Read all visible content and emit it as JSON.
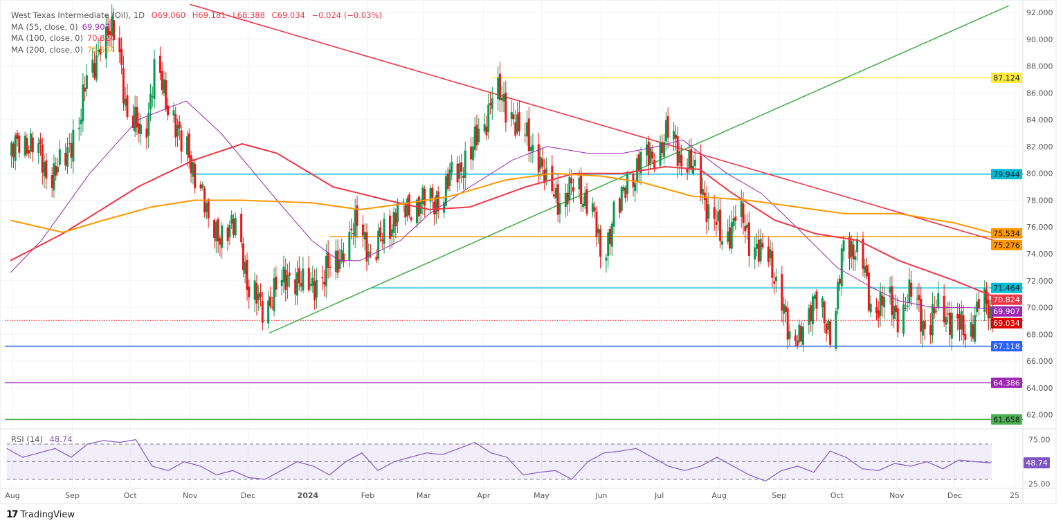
{
  "header": {
    "symbol": "West Texas Intermediate (Oil), 1D",
    "open": "O69.060",
    "high": "H69.181",
    "low": "L68.388",
    "close": "C69.034",
    "change": "−0.024 (−0.03%)",
    "change_color": "#f23645"
  },
  "indicators": [
    {
      "label": "MA (55, close, 0)",
      "value": "69.907",
      "color": "#9c27b0"
    },
    {
      "label": "MA (100, close, 0)",
      "value": "70.824",
      "color": "#f23645"
    },
    {
      "label": "MA (200, close, 0)",
      "value": "75.534",
      "color": "#ff9800"
    }
  ],
  "rsi_legend": {
    "label": "RSI (14)",
    "value": "48.74",
    "color": "#7e57c2"
  },
  "branding": {
    "name": "TradingView"
  },
  "chart_data": {
    "type": "candlestick",
    "title": "West Texas Intermediate (Oil), 1D",
    "y_ticks": [
      "92.000",
      "90.000",
      "88.000",
      "86.000",
      "84.000",
      "82.000",
      "80.000",
      "78.000",
      "76.000",
      "74.000",
      "72.000",
      "70.000",
      "68.000",
      "66.000",
      "64.000",
      "62.000"
    ],
    "ylim": [
      61,
      92.6
    ],
    "x_ticks": [
      {
        "label": "Aug",
        "date": "2023-08-01"
      },
      {
        "label": "Sep",
        "date": "2023-09-01"
      },
      {
        "label": "Oct",
        "date": "2023-10-01"
      },
      {
        "label": "Nov",
        "date": "2023-11-01"
      },
      {
        "label": "Dec",
        "date": "2023-12-01"
      },
      {
        "label": "2024",
        "date": "2024-01-01"
      },
      {
        "label": "Feb",
        "date": "2024-02-01"
      },
      {
        "label": "Mar",
        "date": "2024-03-01"
      },
      {
        "label": "Apr",
        "date": "2024-04-01"
      },
      {
        "label": "May",
        "date": "2024-05-01"
      },
      {
        "label": "Jun",
        "date": "2024-06-01"
      },
      {
        "label": "Jul",
        "date": "2024-07-01"
      },
      {
        "label": "Aug",
        "date": "2024-08-01"
      },
      {
        "label": "Sep",
        "date": "2024-09-01"
      },
      {
        "label": "Oct",
        "date": "2024-10-01"
      },
      {
        "label": "Nov",
        "date": "2024-11-01"
      },
      {
        "label": "Dec",
        "date": "2024-12-01"
      },
      {
        "label": "25",
        "date": "2025-01-01"
      }
    ],
    "weekly_closes_start": "2023-07-31",
    "weekly_closes": [
      81,
      82.5,
      82,
      80,
      80.5,
      83,
      87,
      90,
      90.5,
      84,
      83,
      87.5,
      85,
      82,
      80,
      76,
      75.5,
      76,
      71,
      70,
      71.5,
      72.5,
      71.5,
      72,
      73,
      74.5,
      76.5,
      73.5,
      76,
      77,
      77.5,
      78,
      78,
      80,
      81,
      83,
      86,
      85,
      83,
      82,
      79,
      78,
      79,
      78,
      74,
      77,
      79.5,
      81,
      81.5,
      83,
      81,
      80,
      77,
      75,
      77,
      75,
      74,
      72,
      67,
      69,
      70.5,
      68,
      75,
      74,
      70,
      70.5,
      69.5,
      71,
      68.5,
      70,
      69,
      68,
      70.5,
      69.034
    ],
    "up_color": "#089950",
    "down_color": "#f01414",
    "moving_averages": [
      {
        "name": "MA (55, close, 0)",
        "color": "#9c27b0",
        "points": [
          [
            "2023-07-31",
            72.6
          ],
          [
            "2023-08-16",
            75
          ],
          [
            "2023-09-10",
            80
          ],
          [
            "2023-10-05",
            84
          ],
          [
            "2023-10-30",
            85.4
          ],
          [
            "2023-11-17",
            83
          ],
          [
            "2023-12-16",
            78
          ],
          [
            "2024-01-03",
            75
          ],
          [
            "2024-01-17",
            73.5
          ],
          [
            "2024-01-28",
            73.5
          ],
          [
            "2024-02-18",
            75
          ],
          [
            "2024-03-04",
            77
          ],
          [
            "2024-03-25",
            79
          ],
          [
            "2024-04-16",
            81
          ],
          [
            "2024-05-04",
            82
          ],
          [
            "2024-05-25",
            81.5
          ],
          [
            "2024-06-12",
            81.5
          ],
          [
            "2024-06-30",
            82
          ],
          [
            "2024-07-13",
            82.5
          ],
          [
            "2024-08-05",
            80
          ],
          [
            "2024-08-23",
            78.5
          ],
          [
            "2024-09-10",
            76
          ],
          [
            "2024-10-01",
            73
          ],
          [
            "2024-10-19",
            71.5
          ],
          [
            "2024-11-02",
            70.5
          ],
          [
            "2024-11-20",
            70
          ],
          [
            "2024-12-08",
            70
          ],
          [
            "2024-12-21",
            69.907
          ]
        ]
      },
      {
        "name": "MA (100, close, 0)",
        "color": "#f23645",
        "points": [
          [
            "2023-07-31",
            73.5
          ],
          [
            "2023-08-27",
            75.5
          ],
          [
            "2023-10-05",
            79
          ],
          [
            "2023-11-03",
            81
          ],
          [
            "2023-11-28",
            82.2
          ],
          [
            "2023-12-16",
            81.5
          ],
          [
            "2024-01-14",
            79
          ],
          [
            "2024-02-11",
            78
          ],
          [
            "2024-03-04",
            77.3
          ],
          [
            "2024-03-25",
            77.5
          ],
          [
            "2024-04-23",
            79
          ],
          [
            "2024-05-18",
            80
          ],
          [
            "2024-06-12",
            80
          ],
          [
            "2024-07-04",
            80.5
          ],
          [
            "2024-07-22",
            80.3
          ],
          [
            "2024-08-08",
            78.5
          ],
          [
            "2024-08-30",
            76.5
          ],
          [
            "2024-09-20",
            75.5
          ],
          [
            "2024-10-12",
            75
          ],
          [
            "2024-11-02",
            73.5
          ],
          [
            "2024-12-01",
            72
          ],
          [
            "2024-12-21",
            70.824
          ]
        ]
      },
      {
        "name": "MA (200, close, 0)",
        "color": "#ff9800",
        "points": [
          [
            "2023-07-31",
            76.5
          ],
          [
            "2023-08-27",
            75.6
          ],
          [
            "2023-09-17",
            76.5
          ],
          [
            "2023-10-12",
            77.5
          ],
          [
            "2023-11-03",
            78
          ],
          [
            "2023-11-28",
            78
          ],
          [
            "2024-01-03",
            77.8
          ],
          [
            "2024-01-28",
            77.3
          ],
          [
            "2024-02-18",
            77.7
          ],
          [
            "2024-03-15",
            78.3
          ],
          [
            "2024-04-12",
            79.5
          ],
          [
            "2024-05-07",
            80
          ],
          [
            "2024-06-01",
            79.8
          ],
          [
            "2024-06-23",
            79.3
          ],
          [
            "2024-07-18",
            78.3
          ],
          [
            "2024-08-16",
            78
          ],
          [
            "2024-09-10",
            77.5
          ],
          [
            "2024-10-05",
            77
          ],
          [
            "2024-11-02",
            77
          ],
          [
            "2024-12-01",
            76.3
          ],
          [
            "2024-12-21",
            75.534
          ]
        ]
      }
    ],
    "trend_lines": [
      {
        "color": "#f23645",
        "from": [
          "2023-11-01",
          92.6
        ],
        "to": [
          "2024-12-31",
          74.6
        ]
      },
      {
        "color": "#4caf50",
        "from": [
          "2023-12-12",
          68.1
        ],
        "to": [
          "2024-12-29",
          92.5
        ]
      }
    ],
    "levels": [
      {
        "value": 87.124,
        "label": "87.124",
        "color": "#ffeb3b",
        "text_color": "#131722",
        "from": "2024-04-05",
        "style": "solid"
      },
      {
        "value": 79.944,
        "label": "79.944",
        "color": "#00bcd4",
        "text_color": "#131722",
        "from": "2023-11-03",
        "style": "solid"
      },
      {
        "value": 75.534,
        "label": "75.534",
        "color": "#ff9800",
        "text_color": "#131722",
        "from": null,
        "style": "tag-only"
      },
      {
        "value": 75.276,
        "label": "75.276",
        "color": "#ff9800",
        "text_color": "#131722",
        "from": "2024-01-12",
        "style": "solid"
      },
      {
        "value": 71.464,
        "label": "71.464",
        "color": "#00bcd4",
        "text_color": "#131722",
        "from": "2024-02-03",
        "style": "solid"
      },
      {
        "value": 70.824,
        "label": "70.824",
        "color": "#f23645",
        "text_color": "#ffffff",
        "from": null,
        "style": "tag-only"
      },
      {
        "value": 69.907,
        "label": "69.907",
        "color": "#9c27b0",
        "text_color": "#ffffff",
        "from": null,
        "style": "tag-only"
      },
      {
        "value": 69.034,
        "label": "69.034",
        "color": "#e00000",
        "text_color": "#ffffff",
        "from": "2023-07-28",
        "style": "dotted"
      },
      {
        "value": 67.118,
        "label": "67.118",
        "color": "#2962ff",
        "text_color": "#ffffff",
        "from": "2023-07-28",
        "style": "solid"
      },
      {
        "value": 64.386,
        "label": "64.386",
        "color": "#9c27b0",
        "text_color": "#ffffff",
        "from": "2023-07-28",
        "style": "solid"
      },
      {
        "value": 61.658,
        "label": "61.658",
        "color": "#4caf50",
        "text_color": "#131722",
        "from": "2023-07-28",
        "style": "solid"
      }
    ],
    "rsi": {
      "name": "RSI (14)",
      "color": "#7e57c2",
      "y_ticks": [
        "75.00",
        "25.00"
      ],
      "bands": [
        70,
        50,
        30
      ],
      "last_label": "48.74",
      "values": [
        65,
        55,
        60,
        65,
        55,
        70,
        74,
        72,
        75,
        45,
        40,
        50,
        45,
        35,
        40,
        32,
        30,
        40,
        50,
        45,
        35,
        50,
        60,
        40,
        50,
        55,
        60,
        58,
        65,
        72,
        60,
        55,
        35,
        38,
        40,
        30,
        50,
        60,
        62,
        65,
        55,
        45,
        40,
        45,
        55,
        45,
        35,
        28,
        40,
        45,
        38,
        62,
        55,
        42,
        40,
        48,
        45,
        50,
        42,
        52,
        50,
        48.74
      ]
    }
  }
}
